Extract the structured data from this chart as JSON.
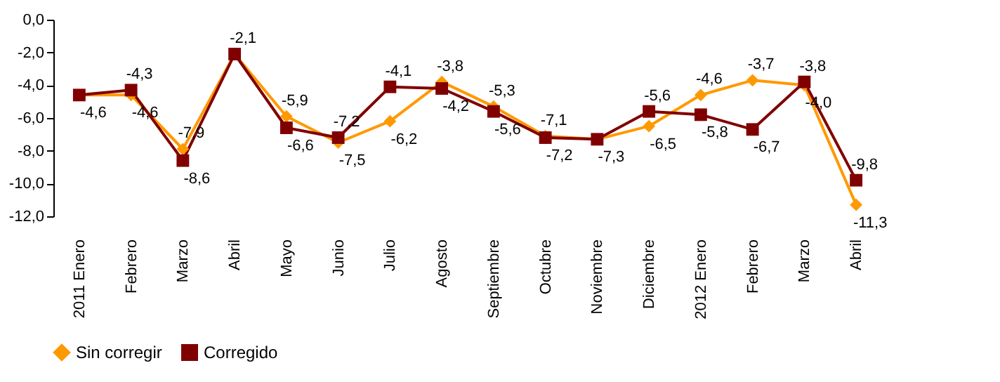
{
  "chart_data": {
    "type": "line",
    "categories": [
      "2011 Enero",
      "Febrero",
      "Marzo",
      "Abril",
      "Mayo",
      "Junio",
      "Julio",
      "Agosto",
      "Septiembre",
      "Octubre",
      "Noviembre",
      "Diciembre",
      "2012 Enero",
      "Febrero",
      "Marzo",
      "Abril"
    ],
    "series": [
      {
        "name": "Sin corregir",
        "color": "#ff9900",
        "marker": "diamond",
        "values": [
          -4.6,
          -4.6,
          -7.9,
          -2.1,
          -5.9,
          -7.5,
          -6.2,
          -3.8,
          -5.3,
          -7.1,
          -7.3,
          -6.5,
          -4.6,
          -3.7,
          -4.0,
          -11.3
        ],
        "value_labels": [
          "-4,6",
          "-4,6",
          "-7,9",
          null,
          "-5,9",
          "-7,5",
          "-6,2",
          "-3,8",
          "-5,3",
          "-7,1",
          "-7,3",
          "-6,5",
          "-4,6",
          "-3,7",
          "-4,0",
          "-11,3"
        ]
      },
      {
        "name": "Corregido",
        "color": "#800000",
        "marker": "square",
        "values": [
          -4.6,
          -4.3,
          -8.6,
          -2.1,
          -6.6,
          -7.2,
          -4.1,
          -4.2,
          -5.6,
          -7.2,
          -7.3,
          -5.6,
          -5.8,
          -6.7,
          -3.8,
          -9.8
        ],
        "value_labels": [
          null,
          "-4,3",
          "-8,6",
          "-2,1",
          "-6,6",
          "-7,2",
          "-4,1",
          "-4,2",
          "-5,6",
          "-7,2",
          null,
          "-5,6",
          "-5,8",
          "-6,7",
          "-3,8",
          "-9,8"
        ]
      }
    ],
    "ylim": [
      -12,
      0
    ],
    "yticks": [
      {
        "value": 0,
        "label": "0,0"
      },
      {
        "value": -2,
        "label": "-2,0"
      },
      {
        "value": -4,
        "label": "-4,0"
      },
      {
        "value": -6,
        "label": "-6,0"
      },
      {
        "value": -8,
        "label": "-8,0"
      },
      {
        "value": -10,
        "label": "-10,0"
      },
      {
        "value": -12,
        "label": "-12,0"
      }
    ],
    "grid": false,
    "legend": "bottom"
  }
}
